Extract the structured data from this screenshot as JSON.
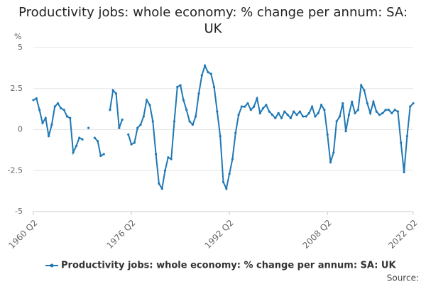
{
  "chart_data": {
    "type": "line",
    "title": "Productivity jobs: whole economy: % change per annum: SA: UK",
    "y_label": "%",
    "source": "Source:",
    "x": [
      1960.25,
      1960.75,
      1961.25,
      1961.75,
      1962.25,
      1962.75,
      1963.25,
      1963.75,
      1964.25,
      1964.75,
      1965.25,
      1965.75,
      1966.25,
      1966.75,
      1967.25,
      1967.75,
      1968.25,
      1968.75,
      1969.25,
      1969.75,
      1970.25,
      1970.75,
      1971.25,
      1971.75,
      1972.25,
      1972.75,
      1973.25,
      1973.75,
      1974.25,
      1974.75,
      1975.25,
      1975.75,
      1976.25,
      1976.75,
      1977.25,
      1977.75,
      1978.25,
      1978.75,
      1979.25,
      1979.75,
      1980.25,
      1980.75,
      1981.25,
      1981.75,
      1982.25,
      1982.75,
      1983.25,
      1983.75,
      1984.25,
      1984.75,
      1985.25,
      1985.75,
      1986.25,
      1986.75,
      1987.25,
      1987.75,
      1988.25,
      1988.75,
      1989.25,
      1989.75,
      1990.25,
      1990.75,
      1991.25,
      1991.75,
      1992.25,
      1992.75,
      1993.25,
      1993.75,
      1994.25,
      1994.75,
      1995.25,
      1995.75,
      1996.25,
      1996.75,
      1997.25,
      1997.75,
      1998.25,
      1998.75,
      1999.25,
      1999.75,
      2000.25,
      2000.75,
      2001.25,
      2001.75,
      2002.25,
      2002.75,
      2003.25,
      2003.75,
      2004.25,
      2004.75,
      2005.25,
      2005.75,
      2006.25,
      2006.75,
      2007.25,
      2007.75,
      2008.25,
      2008.75,
      2009.25,
      2009.75,
      2010.25,
      2010.75,
      2011.25,
      2011.75,
      2012.25,
      2012.75,
      2013.25,
      2013.75,
      2014.25,
      2014.75,
      2015.25,
      2015.75,
      2016.25,
      2016.75,
      2017.25,
      2017.75,
      2018.25,
      2018.75,
      2019.25,
      2019.75,
      2020.25,
      2020.75,
      2021.25,
      2021.75,
      2022.25
    ],
    "series": [
      {
        "name": "Productivity jobs: whole economy: % change per annum: SA: UK",
        "color": "#1f78b4",
        "values": [
          1.8,
          1.9,
          1.2,
          0.4,
          0.7,
          -0.4,
          0.3,
          1.4,
          1.6,
          1.3,
          1.2,
          0.8,
          0.7,
          -1.4,
          -1.0,
          -0.5,
          -0.6,
          null,
          0.1,
          null,
          -0.5,
          -0.7,
          -1.6,
          -1.5,
          null,
          1.2,
          2.4,
          2.2,
          0.1,
          0.6,
          null,
          -0.3,
          -0.9,
          -0.8,
          0.1,
          0.3,
          0.8,
          1.8,
          1.5,
          0.5,
          -1.5,
          -3.3,
          -3.6,
          -2.5,
          -1.7,
          -1.8,
          0.5,
          2.6,
          2.7,
          1.8,
          1.2,
          0.5,
          0.3,
          0.8,
          2.2,
          3.3,
          3.9,
          3.5,
          3.4,
          2.6,
          1.1,
          -0.4,
          -3.2,
          -3.6,
          -2.7,
          -1.8,
          -0.2,
          0.9,
          1.4,
          1.4,
          1.6,
          1.2,
          1.4,
          1.9,
          1.0,
          1.3,
          1.5,
          1.1,
          0.9,
          0.7,
          1.0,
          0.7,
          1.1,
          0.9,
          0.7,
          1.1,
          0.9,
          1.1,
          0.8,
          0.8,
          1.0,
          1.4,
          0.8,
          1.0,
          1.5,
          1.2,
          -0.3,
          -2.0,
          -1.4,
          0.5,
          0.8,
          1.6,
          -0.1,
          0.9,
          1.7,
          1.0,
          1.2,
          2.7,
          2.4,
          1.6,
          1.0,
          1.7,
          1.1,
          0.9,
          1.0,
          1.2,
          1.2,
          1.0,
          1.2,
          1.1,
          -0.8,
          -2.6,
          -0.4,
          1.4,
          1.6
        ]
      }
    ],
    "xlim": [
      1960.25,
      2022.25
    ],
    "xticks": [
      {
        "value": 1960.25,
        "label": "1960 Q2"
      },
      {
        "value": 1976.25,
        "label": "1976 Q2"
      },
      {
        "value": 1992.25,
        "label": "1992 Q2"
      },
      {
        "value": 2008.25,
        "label": "2008 Q2"
      },
      {
        "value": 2022.25,
        "label": "2022 Q2"
      }
    ],
    "ylim": [
      -5,
      5
    ],
    "yticks": [
      -5,
      -2.5,
      0,
      2.5,
      5
    ],
    "grid": true
  }
}
